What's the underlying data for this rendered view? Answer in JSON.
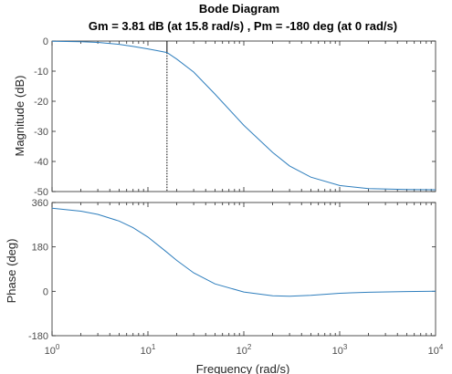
{
  "title": "Bode Diagram",
  "subtitle": "Gm = 3.81 dB (at 15.8 rad/s) ,  Pm = -180 deg (at 0 rad/s)",
  "xlabel": "Frequency  (rad/s)",
  "colors": {
    "curve": "#2e7ebd",
    "margin_line": "#000000"
  },
  "chart_data": [
    {
      "type": "line",
      "panel": "magnitude",
      "ylabel": "Magnitude (dB)",
      "xscale": "log",
      "xlim": [
        1,
        10000
      ],
      "ylim": [
        -50,
        0
      ],
      "yticks": [
        0,
        -10,
        -20,
        -30,
        -40,
        -50
      ],
      "ytick_labels": [
        "0",
        "-10",
        "-20",
        "-30",
        "-40",
        "-50"
      ],
      "gain_margin_marker": {
        "x": 15.8,
        "from_y": -3.81,
        "to_y": -50
      },
      "x": [
        1,
        2,
        3,
        5,
        7,
        10,
        13,
        15.8,
        20,
        30,
        50,
        100,
        200,
        300,
        500,
        1000,
        2000,
        5000,
        10000
      ],
      "y": [
        -0.05,
        -0.2,
        -0.45,
        -1.1,
        -1.8,
        -2.6,
        -3.3,
        -3.81,
        -6.0,
        -10.3,
        -17.6,
        -28.0,
        -37.0,
        -41.5,
        -45.2,
        -48.0,
        -49.0,
        -49.3,
        -49.4
      ]
    },
    {
      "type": "line",
      "panel": "phase",
      "ylabel": "Phase (deg)",
      "xscale": "log",
      "xlim": [
        1,
        10000
      ],
      "ylim": [
        -180,
        360
      ],
      "yticks": [
        360,
        180,
        0,
        -180
      ],
      "ytick_labels": [
        "360",
        "180",
        "0",
        "-180"
      ],
      "x": [
        1,
        2,
        3,
        5,
        7,
        10,
        15,
        20,
        30,
        50,
        100,
        200,
        300,
        500,
        1000,
        2000,
        5000,
        10000
      ],
      "y": [
        337,
        325,
        312,
        285,
        258,
        220,
        165,
        125,
        75,
        30,
        -3,
        -18,
        -20,
        -16,
        -8,
        -4,
        -1,
        0
      ]
    }
  ],
  "xticks": [
    1,
    10,
    100,
    1000,
    10000
  ],
  "xtick_labels": [
    {
      "base": "10",
      "exp": "0"
    },
    {
      "base": "10",
      "exp": "1"
    },
    {
      "base": "10",
      "exp": "2"
    },
    {
      "base": "10",
      "exp": "3"
    },
    {
      "base": "10",
      "exp": "4"
    }
  ]
}
